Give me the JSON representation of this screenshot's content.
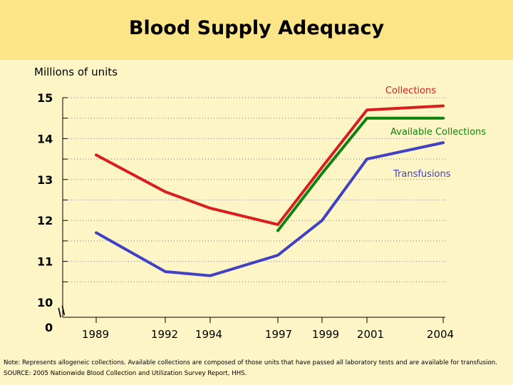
{
  "chart_data": {
    "type": "line",
    "title": "Blood Supply Adequacy",
    "ylabel": "Millions of units",
    "xlabel": "",
    "ylim": [
      10,
      15
    ],
    "y_ticks": [
      "15",
      "14",
      "13",
      "12",
      "11",
      "10",
      "0"
    ],
    "x_ticks": [
      "1989",
      "1992",
      "1994",
      "1997",
      "1999",
      "2001",
      "2004"
    ],
    "axis_break": "//",
    "grid": true,
    "series": [
      {
        "name": "Collections",
        "color": "#d81e1e",
        "x": [
          1989,
          1992,
          1994,
          1997,
          1999,
          2001,
          2004
        ],
        "values": [
          13.6,
          12.7,
          12.3,
          11.9,
          13.3,
          14.7,
          14.8
        ]
      },
      {
        "name": "Available Collections",
        "color": "#0f820f",
        "x": [
          1997,
          1999,
          2001,
          2004
        ],
        "values": [
          11.75,
          13.15,
          14.5,
          14.5
        ]
      },
      {
        "name": "Transfusions",
        "color": "#4141c4",
        "x": [
          1989,
          1992,
          1994,
          1997,
          1999,
          2001,
          2004
        ],
        "values": [
          11.7,
          10.75,
          10.65,
          11.15,
          12.0,
          13.5,
          13.9
        ]
      }
    ]
  },
  "notes": {
    "note": "Note:  Represents allogeneic collections. Available collections are composed of those units that have passed all laboratory tests and are available for transfusion.",
    "source": "SOURCE:  2005 Nationwide Blood Collection and Utilization Survey Report, HHS."
  }
}
